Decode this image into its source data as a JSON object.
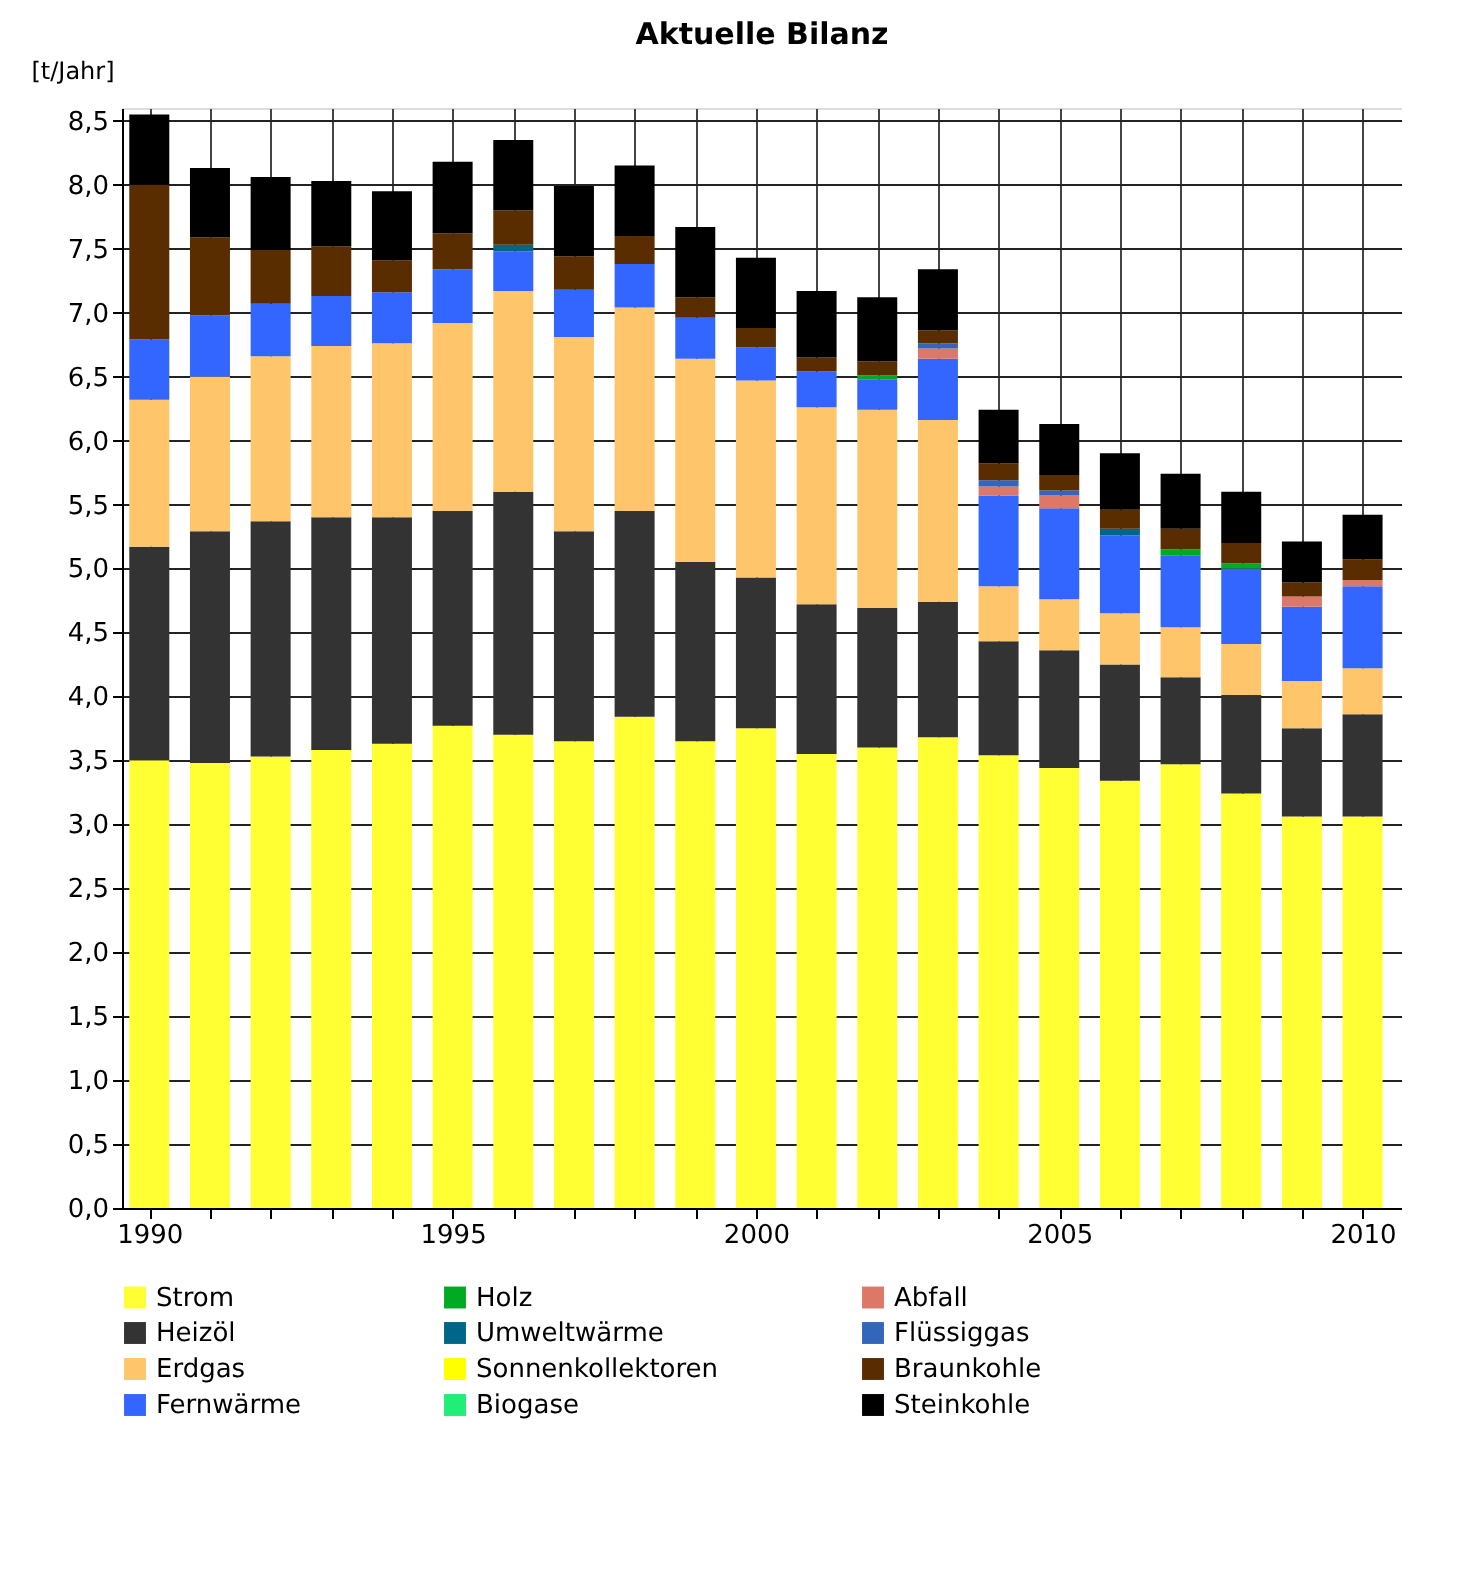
{
  "chart_data": {
    "type": "bar",
    "stacked": true,
    "title": "Aktuelle Bilanz",
    "ylabel": "[t/Jahr]",
    "x": [
      1990,
      1991,
      1992,
      1993,
      1994,
      1995,
      1996,
      1997,
      1998,
      1999,
      2000,
      2001,
      2002,
      2003,
      2004,
      2005,
      2006,
      2007,
      2008,
      2009,
      2010
    ],
    "series": [
      {
        "name": "Strom",
        "color": "#ffff33",
        "values": [
          3.5,
          3.48,
          3.53,
          3.58,
          3.63,
          3.77,
          3.7,
          3.65,
          3.84,
          3.65,
          3.75,
          3.55,
          3.6,
          3.68,
          3.54,
          3.44,
          3.34,
          3.47,
          3.24,
          3.06,
          3.06
        ]
      },
      {
        "name": "Heizöl",
        "color": "#333333",
        "values": [
          1.67,
          1.81,
          1.84,
          1.82,
          1.77,
          1.68,
          1.9,
          1.64,
          1.61,
          1.4,
          1.18,
          1.17,
          1.09,
          1.06,
          0.89,
          0.92,
          0.91,
          0.68,
          0.77,
          0.69,
          0.8
        ]
      },
      {
        "name": "Erdgas",
        "color": "#ffc56b",
        "values": [
          1.15,
          1.21,
          1.29,
          1.34,
          1.36,
          1.47,
          1.57,
          1.52,
          1.59,
          1.59,
          1.54,
          1.54,
          1.55,
          1.42,
          0.43,
          0.4,
          0.4,
          0.39,
          0.4,
          0.37,
          0.36
        ]
      },
      {
        "name": "Fernwärme",
        "color": "#3366ff",
        "values": [
          0.47,
          0.48,
          0.41,
          0.39,
          0.4,
          0.42,
          0.31,
          0.37,
          0.34,
          0.32,
          0.26,
          0.28,
          0.24,
          0.48,
          0.71,
          0.71,
          0.61,
          0.56,
          0.59,
          0.58,
          0.64
        ]
      },
      {
        "name": "Holz",
        "color": "#00aa22",
        "values": [
          0,
          0,
          0,
          0,
          0,
          0,
          0,
          0,
          0,
          0,
          0,
          0,
          0.03,
          0,
          0,
          0,
          0,
          0.05,
          0.04,
          0,
          0
        ]
      },
      {
        "name": "Umweltwärme",
        "color": "#006688",
        "values": [
          0,
          0,
          0,
          0,
          0,
          0,
          0.05,
          0,
          0,
          0,
          0,
          0,
          0,
          0,
          0,
          0,
          0.05,
          0,
          0,
          0,
          0
        ]
      },
      {
        "name": "Sonnenkollektoren",
        "color": "#ffff00",
        "values": [
          0,
          0,
          0,
          0,
          0,
          0,
          0,
          0,
          0,
          0,
          0,
          0,
          0,
          0,
          0,
          0,
          0,
          0,
          0,
          0,
          0
        ]
      },
      {
        "name": "Biogase",
        "color": "#22ee77",
        "values": [
          0,
          0,
          0,
          0,
          0,
          0,
          0,
          0,
          0,
          0,
          0,
          0,
          0,
          0,
          0,
          0,
          0,
          0,
          0,
          0,
          0
        ]
      },
      {
        "name": "Abfall",
        "color": "#dd7766",
        "values": [
          0,
          0,
          0,
          0,
          0,
          0,
          0,
          0,
          0,
          0,
          0,
          0,
          0,
          0.08,
          0.07,
          0.1,
          0,
          0,
          0,
          0.08,
          0.05
        ]
      },
      {
        "name": "Flüssiggas",
        "color": "#3366bb",
        "values": [
          0,
          0,
          0,
          0,
          0,
          0,
          0,
          0,
          0,
          0,
          0,
          0,
          0,
          0.04,
          0.05,
          0.04,
          0,
          0,
          0,
          0,
          0
        ]
      },
      {
        "name": "Braunkohle",
        "color": "#5a2d00",
        "values": [
          1.21,
          0.61,
          0.42,
          0.39,
          0.25,
          0.28,
          0.27,
          0.26,
          0.22,
          0.16,
          0.15,
          0.11,
          0.11,
          0.1,
          0.13,
          0.12,
          0.15,
          0.16,
          0.16,
          0.11,
          0.16
        ]
      },
      {
        "name": "Steinkohle",
        "color": "#000000",
        "values": [
          0.55,
          0.54,
          0.57,
          0.51,
          0.54,
          0.56,
          0.55,
          0.55,
          0.55,
          0.55,
          0.55,
          0.52,
          0.5,
          0.48,
          0.42,
          0.4,
          0.44,
          0.43,
          0.4,
          0.32,
          0.35
        ]
      }
    ],
    "xlim": [
      1989.55,
      2010.65
    ],
    "xticks": [
      1990,
      {
        "value": 1991,
        "label": null
      },
      {
        "value": 1992,
        "label": null
      },
      {
        "value": 1993,
        "label": null
      },
      {
        "value": 1994,
        "label": null
      },
      1995,
      {
        "value": 1996,
        "label": null
      },
      {
        "value": 1997,
        "label": null
      },
      {
        "value": 1998,
        "label": null
      },
      {
        "value": 1999,
        "label": null
      },
      2000,
      {
        "value": 2001,
        "label": null
      },
      {
        "value": 2002,
        "label": null
      },
      {
        "value": 2003,
        "label": null
      },
      {
        "value": 2004,
        "label": null
      },
      2005,
      {
        "value": 2006,
        "label": null
      },
      {
        "value": 2007,
        "label": null
      },
      {
        "value": 2008,
        "label": null
      },
      {
        "value": 2009,
        "label": null
      },
      2010
    ],
    "ylim": [
      0,
      8.6
    ],
    "yticks": [
      {
        "value": 0,
        "label": "0,0"
      },
      {
        "value": 0.5,
        "label": "0,5"
      },
      {
        "value": 1,
        "label": "1,0"
      },
      {
        "value": 1.5,
        "label": "1,5"
      },
      {
        "value": 2,
        "label": "2,0"
      },
      {
        "value": 2.5,
        "label": "2,5"
      },
      {
        "value": 3,
        "label": "3,0"
      },
      {
        "value": 3.5,
        "label": "3,5"
      },
      {
        "value": 4,
        "label": "4,0"
      },
      {
        "value": 4.5,
        "label": "4,5"
      },
      {
        "value": 5,
        "label": "5,0"
      },
      {
        "value": 5.5,
        "label": "5,5"
      },
      {
        "value": 6,
        "label": "6,0"
      },
      {
        "value": 6.5,
        "label": "6,5"
      },
      {
        "value": 7,
        "label": "7,0"
      },
      {
        "value": 7.5,
        "label": "7,5"
      },
      {
        "value": 8,
        "label": "8,0"
      },
      {
        "value": 8.5,
        "label": "8,5"
      }
    ],
    "grid": true,
    "legend": "bottom"
  }
}
